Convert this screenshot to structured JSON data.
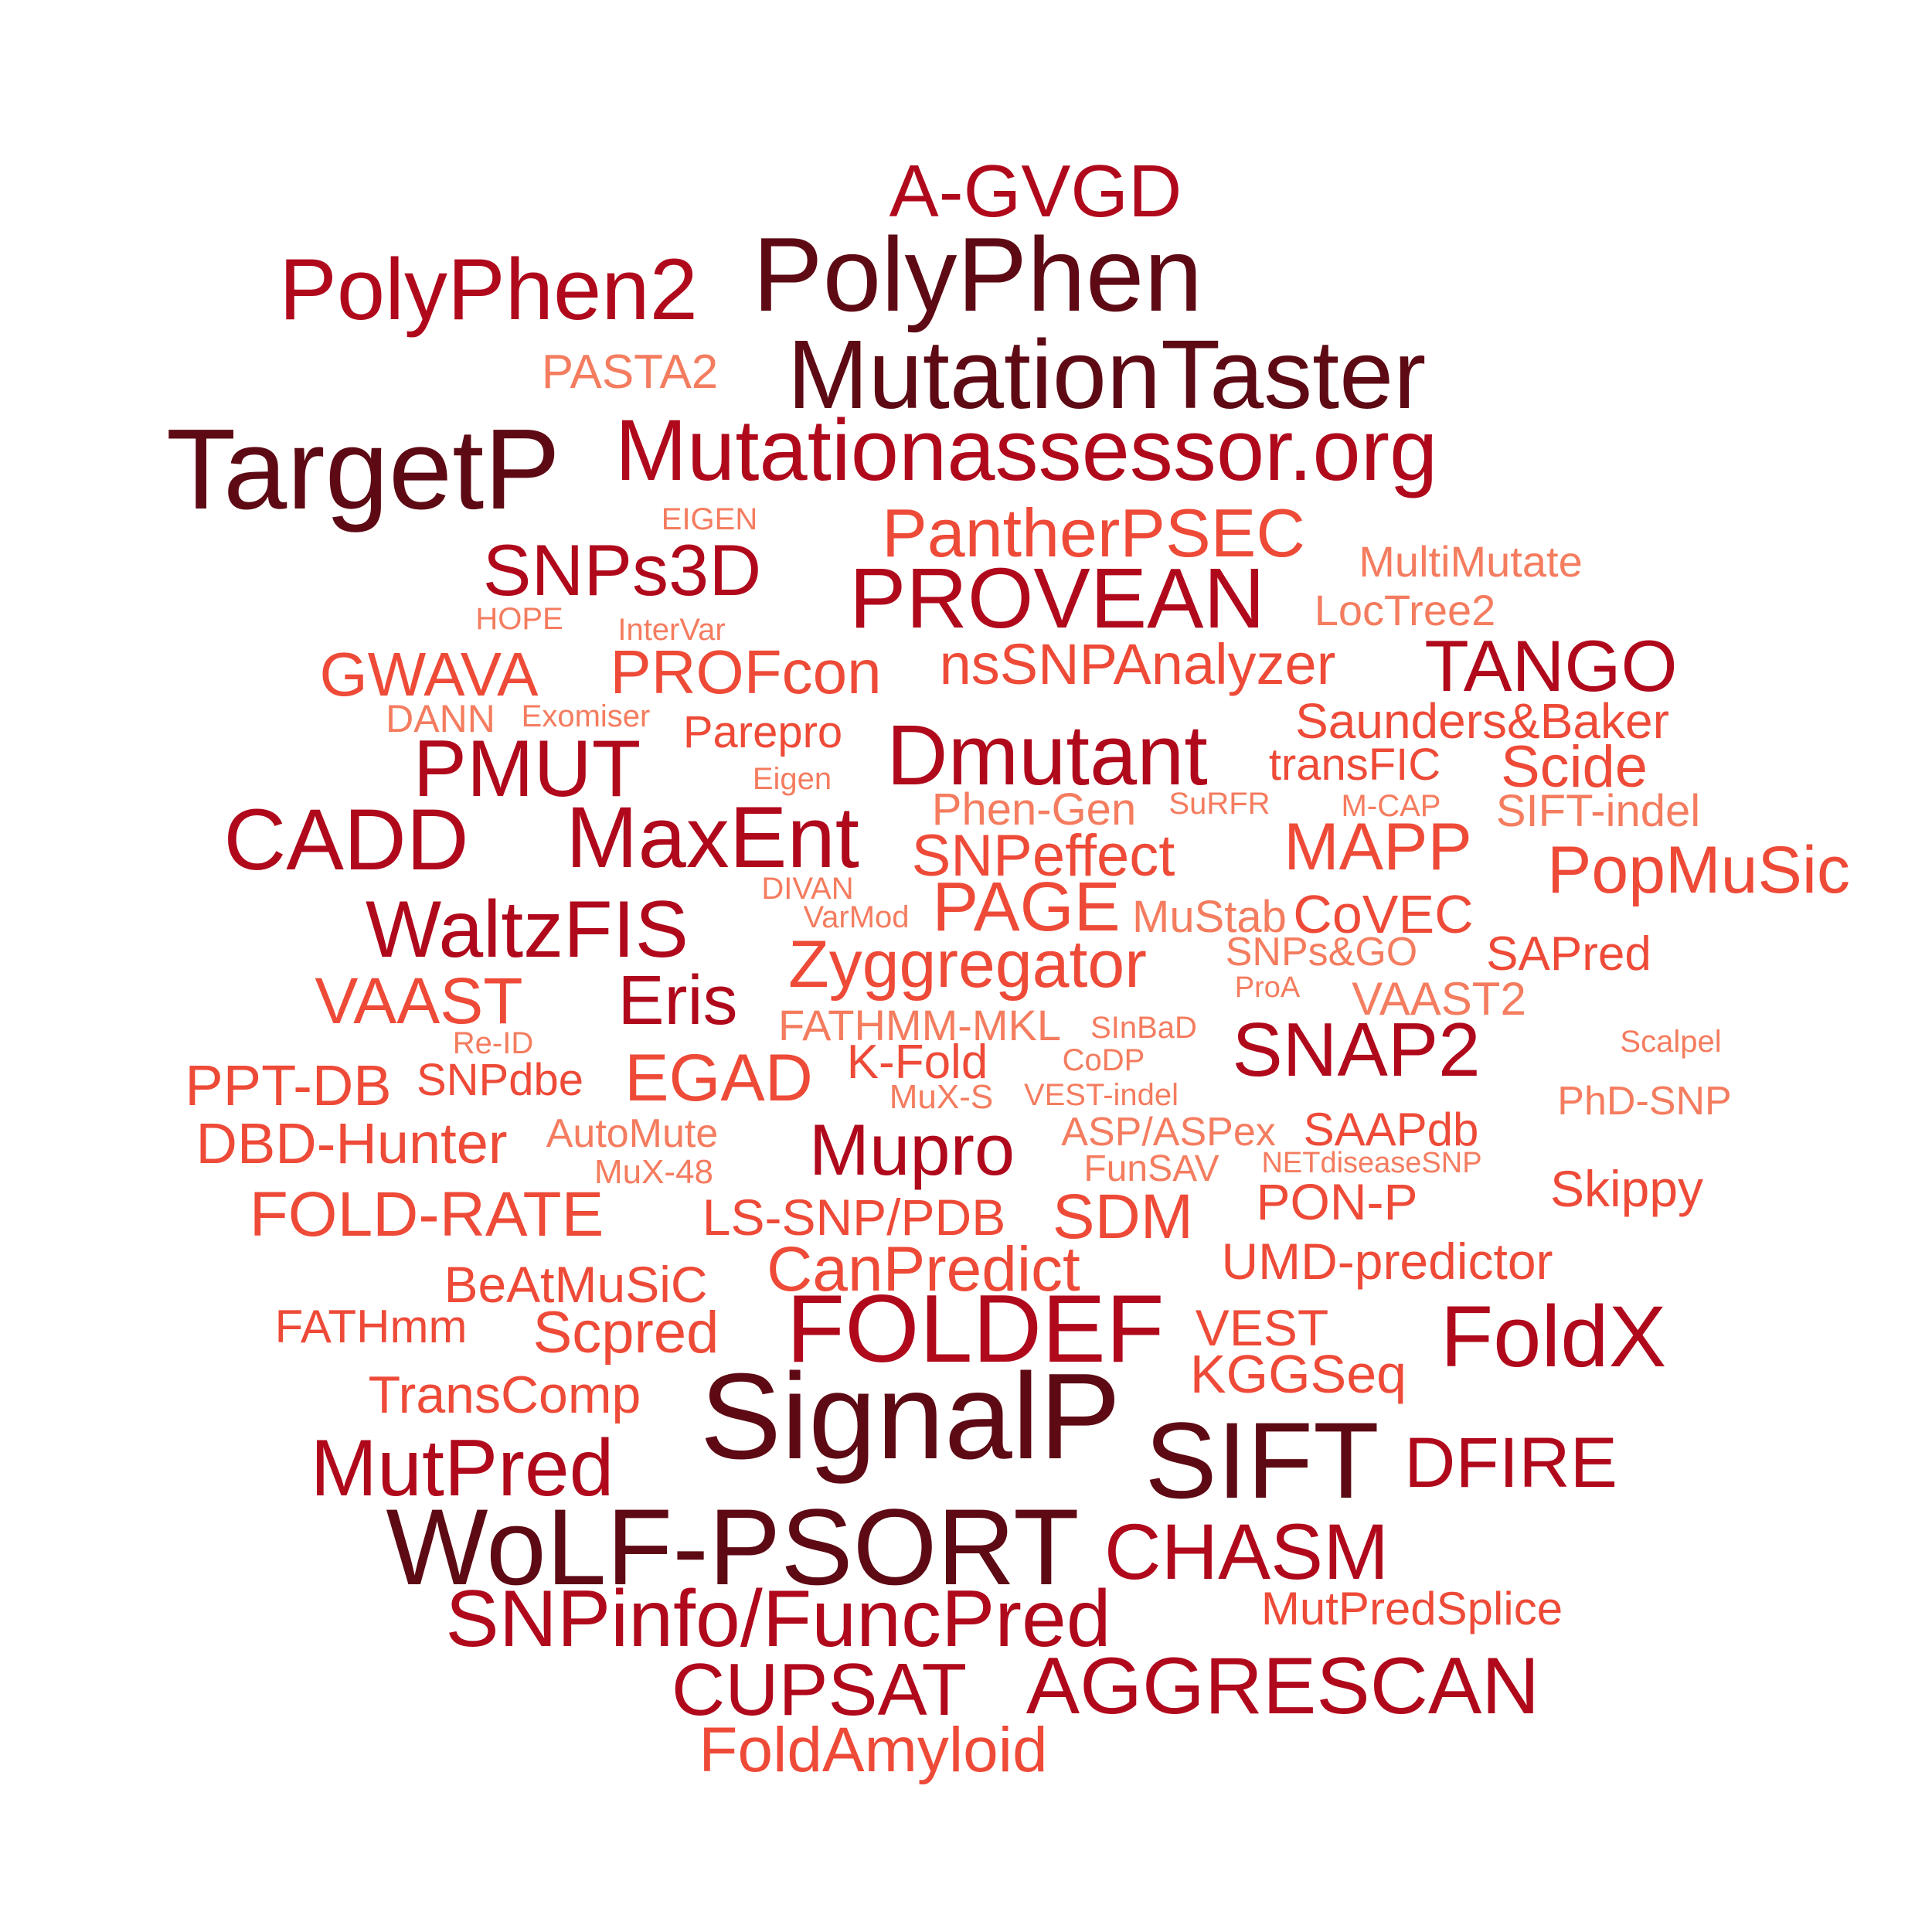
{
  "palette": {
    "darkest": "#5e0a14",
    "dark_red": "#b0091c",
    "red_orange": "#ee4a38",
    "salmon": "#f47c5f",
    "background": "#ffffff"
  },
  "words": [
    {
      "text": "A-GVGD",
      "tone": "dark_red"
    },
    {
      "text": "PolyPhen2",
      "tone": "dark_red"
    },
    {
      "text": "PolyPhen",
      "tone": "darkest"
    },
    {
      "text": "PASTA2",
      "tone": "salmon"
    },
    {
      "text": "MutationTaster",
      "tone": "darkest"
    },
    {
      "text": "TargetP",
      "tone": "darkest"
    },
    {
      "text": "Mutationassessor.org",
      "tone": "dark_red"
    },
    {
      "text": "EIGEN",
      "tone": "salmon"
    },
    {
      "text": "PantherPSEC",
      "tone": "red_orange"
    },
    {
      "text": "SNPs3D",
      "tone": "dark_red"
    },
    {
      "text": "MultiMutate",
      "tone": "salmon"
    },
    {
      "text": "PROVEAN",
      "tone": "dark_red"
    },
    {
      "text": "HOPE",
      "tone": "salmon"
    },
    {
      "text": "InterVar",
      "tone": "salmon"
    },
    {
      "text": "LocTree2",
      "tone": "salmon"
    },
    {
      "text": "GWAVA",
      "tone": "red_orange"
    },
    {
      "text": "PROFcon",
      "tone": "red_orange"
    },
    {
      "text": "nsSNPAnalyzer",
      "tone": "red_orange"
    },
    {
      "text": "TANGO",
      "tone": "dark_red"
    },
    {
      "text": "DANN",
      "tone": "salmon"
    },
    {
      "text": "Exomiser",
      "tone": "salmon"
    },
    {
      "text": "Saunders&Baker",
      "tone": "red_orange"
    },
    {
      "text": "Parepro",
      "tone": "red_orange"
    },
    {
      "text": "PMUT",
      "tone": "dark_red"
    },
    {
      "text": "Dmutant",
      "tone": "dark_red"
    },
    {
      "text": "transFIC",
      "tone": "red_orange"
    },
    {
      "text": "Scide",
      "tone": "red_orange"
    },
    {
      "text": "Eigen",
      "tone": "salmon"
    },
    {
      "text": "Phen-Gen",
      "tone": "salmon"
    },
    {
      "text": "SuRFR",
      "tone": "salmon"
    },
    {
      "text": "M-CAP",
      "tone": "salmon"
    },
    {
      "text": "SIFT-indel",
      "tone": "salmon"
    },
    {
      "text": "CADD",
      "tone": "dark_red"
    },
    {
      "text": "MaxEnt",
      "tone": "dark_red"
    },
    {
      "text": "SNPeffect",
      "tone": "red_orange"
    },
    {
      "text": "MAPP",
      "tone": "red_orange"
    },
    {
      "text": "PopMuSic",
      "tone": "red_orange"
    },
    {
      "text": "DIVAN",
      "tone": "salmon"
    },
    {
      "text": "PAGE",
      "tone": "red_orange"
    },
    {
      "text": "WaltzFIS",
      "tone": "dark_red"
    },
    {
      "text": "VarMod",
      "tone": "salmon"
    },
    {
      "text": "MuStab",
      "tone": "salmon"
    },
    {
      "text": "CoVEC",
      "tone": "red_orange"
    },
    {
      "text": "Zyggregator",
      "tone": "red_orange"
    },
    {
      "text": "SNPs&GO",
      "tone": "salmon"
    },
    {
      "text": "SAPred",
      "tone": "red_orange"
    },
    {
      "text": "VAAST",
      "tone": "red_orange"
    },
    {
      "text": "Eris",
      "tone": "dark_red"
    },
    {
      "text": "ProA",
      "tone": "salmon"
    },
    {
      "text": "VAAST2",
      "tone": "salmon"
    },
    {
      "text": "FATHMM-MKL",
      "tone": "salmon"
    },
    {
      "text": "SInBaD",
      "tone": "salmon"
    },
    {
      "text": "SNAP2",
      "tone": "dark_red"
    },
    {
      "text": "Re-ID",
      "tone": "salmon"
    },
    {
      "text": "Scalpel",
      "tone": "salmon"
    },
    {
      "text": "PPT-DB",
      "tone": "red_orange"
    },
    {
      "text": "SNPdbe",
      "tone": "red_orange"
    },
    {
      "text": "EGAD",
      "tone": "red_orange"
    },
    {
      "text": "K-Fold",
      "tone": "red_orange"
    },
    {
      "text": "CoDP",
      "tone": "salmon"
    },
    {
      "text": "MuX-S",
      "tone": "salmon"
    },
    {
      "text": "VEST-indel",
      "tone": "salmon"
    },
    {
      "text": "PhD-SNP",
      "tone": "salmon"
    },
    {
      "text": "DBD-Hunter",
      "tone": "red_orange"
    },
    {
      "text": "AutoMute",
      "tone": "salmon"
    },
    {
      "text": "Mupro",
      "tone": "dark_red"
    },
    {
      "text": "ASP/ASPex",
      "tone": "salmon"
    },
    {
      "text": "SAAPdb",
      "tone": "red_orange"
    },
    {
      "text": "MuX-48",
      "tone": "salmon"
    },
    {
      "text": "FunSAV",
      "tone": "salmon"
    },
    {
      "text": "NETdiseaseSNP",
      "tone": "salmon"
    },
    {
      "text": "Skippy",
      "tone": "red_orange"
    },
    {
      "text": "FOLD-RATE",
      "tone": "red_orange"
    },
    {
      "text": "LS-SNP/PDB",
      "tone": "red_orange"
    },
    {
      "text": "SDM",
      "tone": "red_orange"
    },
    {
      "text": "PON-P",
      "tone": "red_orange"
    },
    {
      "text": "UMD-predictor",
      "tone": "red_orange"
    },
    {
      "text": "BeAtMuSiC",
      "tone": "red_orange"
    },
    {
      "text": "CanPredict",
      "tone": "red_orange"
    },
    {
      "text": "FATHmm",
      "tone": "red_orange"
    },
    {
      "text": "Scpred",
      "tone": "red_orange"
    },
    {
      "text": "FOLDEF",
      "tone": "dark_red"
    },
    {
      "text": "VEST",
      "tone": "red_orange"
    },
    {
      "text": "FoldX",
      "tone": "dark_red"
    },
    {
      "text": "KGGSeq",
      "tone": "red_orange"
    },
    {
      "text": "TransComp",
      "tone": "red_orange"
    },
    {
      "text": "SignalP",
      "tone": "darkest"
    },
    {
      "text": "SIFT",
      "tone": "darkest"
    },
    {
      "text": "MutPred",
      "tone": "dark_red"
    },
    {
      "text": "DFIRE",
      "tone": "dark_red"
    },
    {
      "text": "WoLF-PSORT",
      "tone": "darkest"
    },
    {
      "text": "CHASM",
      "tone": "dark_red"
    },
    {
      "text": "SNPinfo/FuncPred",
      "tone": "dark_red"
    },
    {
      "text": "MutPredSplice",
      "tone": "red_orange"
    },
    {
      "text": "CUPSAT",
      "tone": "dark_red"
    },
    {
      "text": "AGGRESCAN",
      "tone": "dark_red"
    },
    {
      "text": "FoldAmyloid",
      "tone": "red_orange"
    }
  ]
}
